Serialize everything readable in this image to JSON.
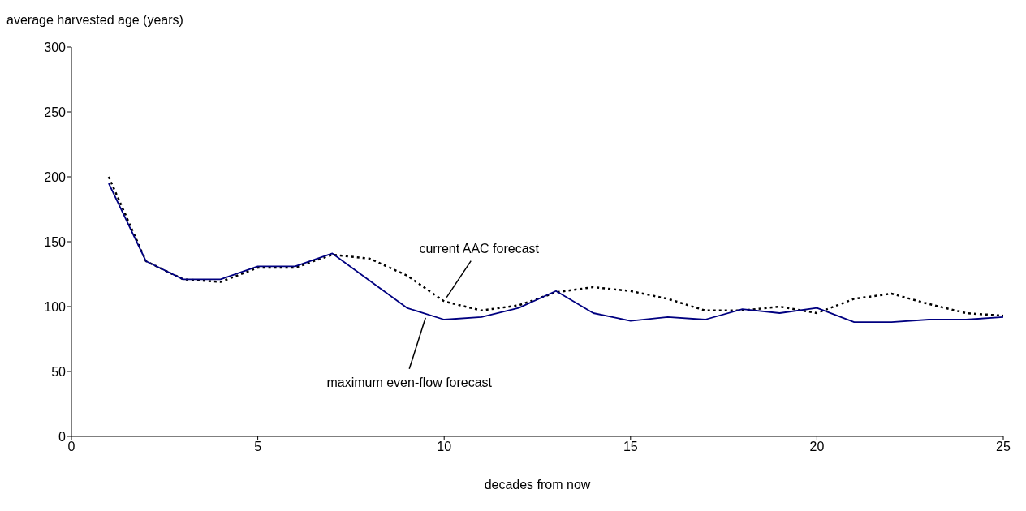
{
  "chart_data": {
    "type": "line",
    "xlabel": "decades from now",
    "ylabel": "average harvested age (years)",
    "x": [
      1,
      2,
      3,
      4,
      5,
      6,
      7,
      8,
      9,
      10,
      11,
      12,
      13,
      14,
      15,
      16,
      17,
      18,
      19,
      20,
      21,
      22,
      23,
      24,
      25
    ],
    "series": [
      {
        "name": "current AAC forecast",
        "color": "#000000",
        "line_style": "dotted",
        "values": [
          200,
          135,
          121,
          119,
          130,
          130,
          140,
          137,
          124,
          104,
          97,
          101,
          111,
          115,
          112,
          106,
          97,
          97,
          100,
          95,
          106,
          110,
          102,
          95,
          93
        ]
      },
      {
        "name": "maximum even-flow forecast",
        "color": "#000080",
        "line_style": "solid",
        "values": [
          195,
          135,
          121,
          121,
          131,
          131,
          141,
          120,
          99,
          90,
          92,
          99,
          112,
          95,
          89,
          92,
          90,
          98,
          95,
          99,
          88,
          88,
          90,
          90,
          92
        ]
      }
    ],
    "xlim": [
      0,
      25
    ],
    "xticks": [
      0,
      5,
      10,
      15,
      20,
      25
    ],
    "ylim": [
      0,
      300
    ],
    "yticks": [
      0,
      50,
      100,
      150,
      200,
      250,
      300
    ],
    "grid": false,
    "legend": false,
    "marker": "none"
  }
}
